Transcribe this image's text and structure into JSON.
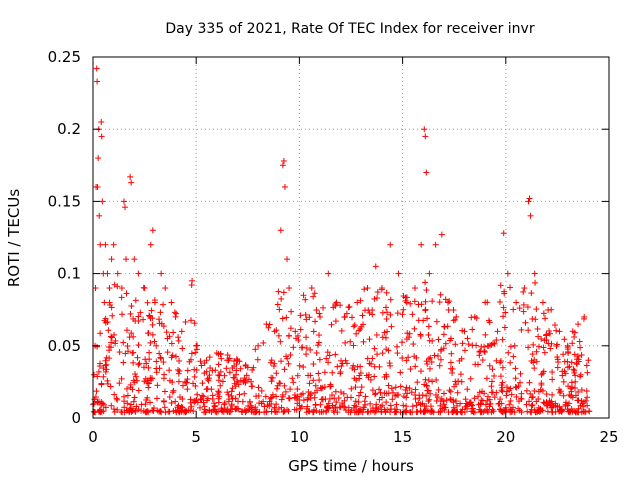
{
  "chart_data": {
    "type": "scatter",
    "title": "Day 335 of 2021, Rate Of TEC Index for receiver invr",
    "xlabel": "GPS time / hours",
    "ylabel": "ROTI / TECUs",
    "xlim": [
      0,
      25
    ],
    "ylim": [
      0,
      0.25
    ],
    "xticks": [
      0,
      5,
      10,
      15,
      20,
      25
    ],
    "xtick_labels": [
      "0",
      "5",
      "10",
      "15",
      "20",
      "25"
    ],
    "yticks": [
      0,
      0.05,
      0.1,
      0.15,
      0.2,
      0.25
    ],
    "ytick_labels": [
      "0",
      "0.05",
      "0.1",
      "0.15",
      "0.2",
      "0.25"
    ],
    "grid": true,
    "marker": "plus",
    "color": "#ff0000",
    "series": [
      {
        "name": "ROTI",
        "points": [
          [
            0.05,
            0.03
          ],
          [
            0.1,
            0.05
          ],
          [
            0.12,
            0.09
          ],
          [
            0.15,
            0.16
          ],
          [
            0.18,
            0.242
          ],
          [
            0.2,
            0.233
          ],
          [
            0.22,
            0.16
          ],
          [
            0.25,
            0.18
          ],
          [
            0.28,
            0.2
          ],
          [
            0.3,
            0.14
          ],
          [
            0.35,
            0.12
          ],
          [
            0.4,
            0.205
          ],
          [
            0.42,
            0.195
          ],
          [
            0.45,
            0.15
          ],
          [
            0.5,
            0.1
          ],
          [
            0.55,
            0.08
          ],
          [
            0.6,
            0.12
          ],
          [
            0.7,
            0.1
          ],
          [
            0.8,
            0.09
          ],
          [
            0.9,
            0.11
          ],
          [
            1.0,
            0.12
          ],
          [
            1.2,
            0.1
          ],
          [
            1.4,
            0.09
          ],
          [
            1.5,
            0.15
          ],
          [
            1.55,
            0.146
          ],
          [
            1.6,
            0.11
          ],
          [
            1.8,
            0.167
          ],
          [
            1.85,
            0.163
          ],
          [
            2.0,
            0.11
          ],
          [
            2.2,
            0.1
          ],
          [
            2.5,
            0.09
          ],
          [
            2.8,
            0.12
          ],
          [
            2.9,
            0.13
          ],
          [
            3.0,
            0.08
          ],
          [
            3.3,
            0.1
          ],
          [
            3.5,
            0.09
          ],
          [
            3.8,
            0.08
          ],
          [
            4.0,
            0.07
          ],
          [
            4.3,
            0.06
          ],
          [
            4.8,
            0.095
          ],
          [
            5.0,
            0.05
          ],
          [
            5.5,
            0.04
          ],
          [
            6.0,
            0.045
          ],
          [
            6.5,
            0.04
          ],
          [
            7.0,
            0.04
          ],
          [
            7.5,
            0.035
          ],
          [
            8.0,
            0.05
          ],
          [
            8.4,
            0.065
          ],
          [
            8.8,
            0.06
          ],
          [
            9.1,
            0.13
          ],
          [
            9.2,
            0.175
          ],
          [
            9.25,
            0.178
          ],
          [
            9.3,
            0.16
          ],
          [
            9.4,
            0.11
          ],
          [
            9.5,
            0.09
          ],
          [
            9.8,
            0.06
          ],
          [
            10.2,
            0.085
          ],
          [
            10.6,
            0.09
          ],
          [
            11.0,
            0.07
          ],
          [
            11.4,
            0.1
          ],
          [
            11.8,
            0.08
          ],
          [
            12.2,
            0.07
          ],
          [
            12.8,
            0.08
          ],
          [
            13.3,
            0.09
          ],
          [
            13.7,
            0.105
          ],
          [
            14.0,
            0.09
          ],
          [
            14.4,
            0.12
          ],
          [
            14.8,
            0.1
          ],
          [
            15.2,
            0.08
          ],
          [
            15.6,
            0.09
          ],
          [
            15.9,
            0.12
          ],
          [
            16.05,
            0.2
          ],
          [
            16.1,
            0.195
          ],
          [
            16.15,
            0.17
          ],
          [
            16.3,
            0.1
          ],
          [
            16.6,
            0.12
          ],
          [
            16.9,
            0.127
          ],
          [
            17.2,
            0.08
          ],
          [
            17.6,
            0.07
          ],
          [
            18.0,
            0.06
          ],
          [
            18.5,
            0.07
          ],
          [
            19.0,
            0.08
          ],
          [
            19.6,
            0.06
          ],
          [
            19.9,
            0.128
          ],
          [
            20.1,
            0.1
          ],
          [
            20.5,
            0.08
          ],
          [
            20.9,
            0.09
          ],
          [
            21.1,
            0.15
          ],
          [
            21.15,
            0.152
          ],
          [
            21.2,
            0.14
          ],
          [
            21.4,
            0.1
          ],
          [
            21.8,
            0.08
          ],
          [
            22.2,
            0.075
          ],
          [
            22.6,
            0.06
          ],
          [
            23.0,
            0.05
          ],
          [
            23.5,
            0.065
          ],
          [
            23.8,
            0.07
          ],
          [
            24.0,
            0.04
          ]
        ]
      }
    ]
  }
}
